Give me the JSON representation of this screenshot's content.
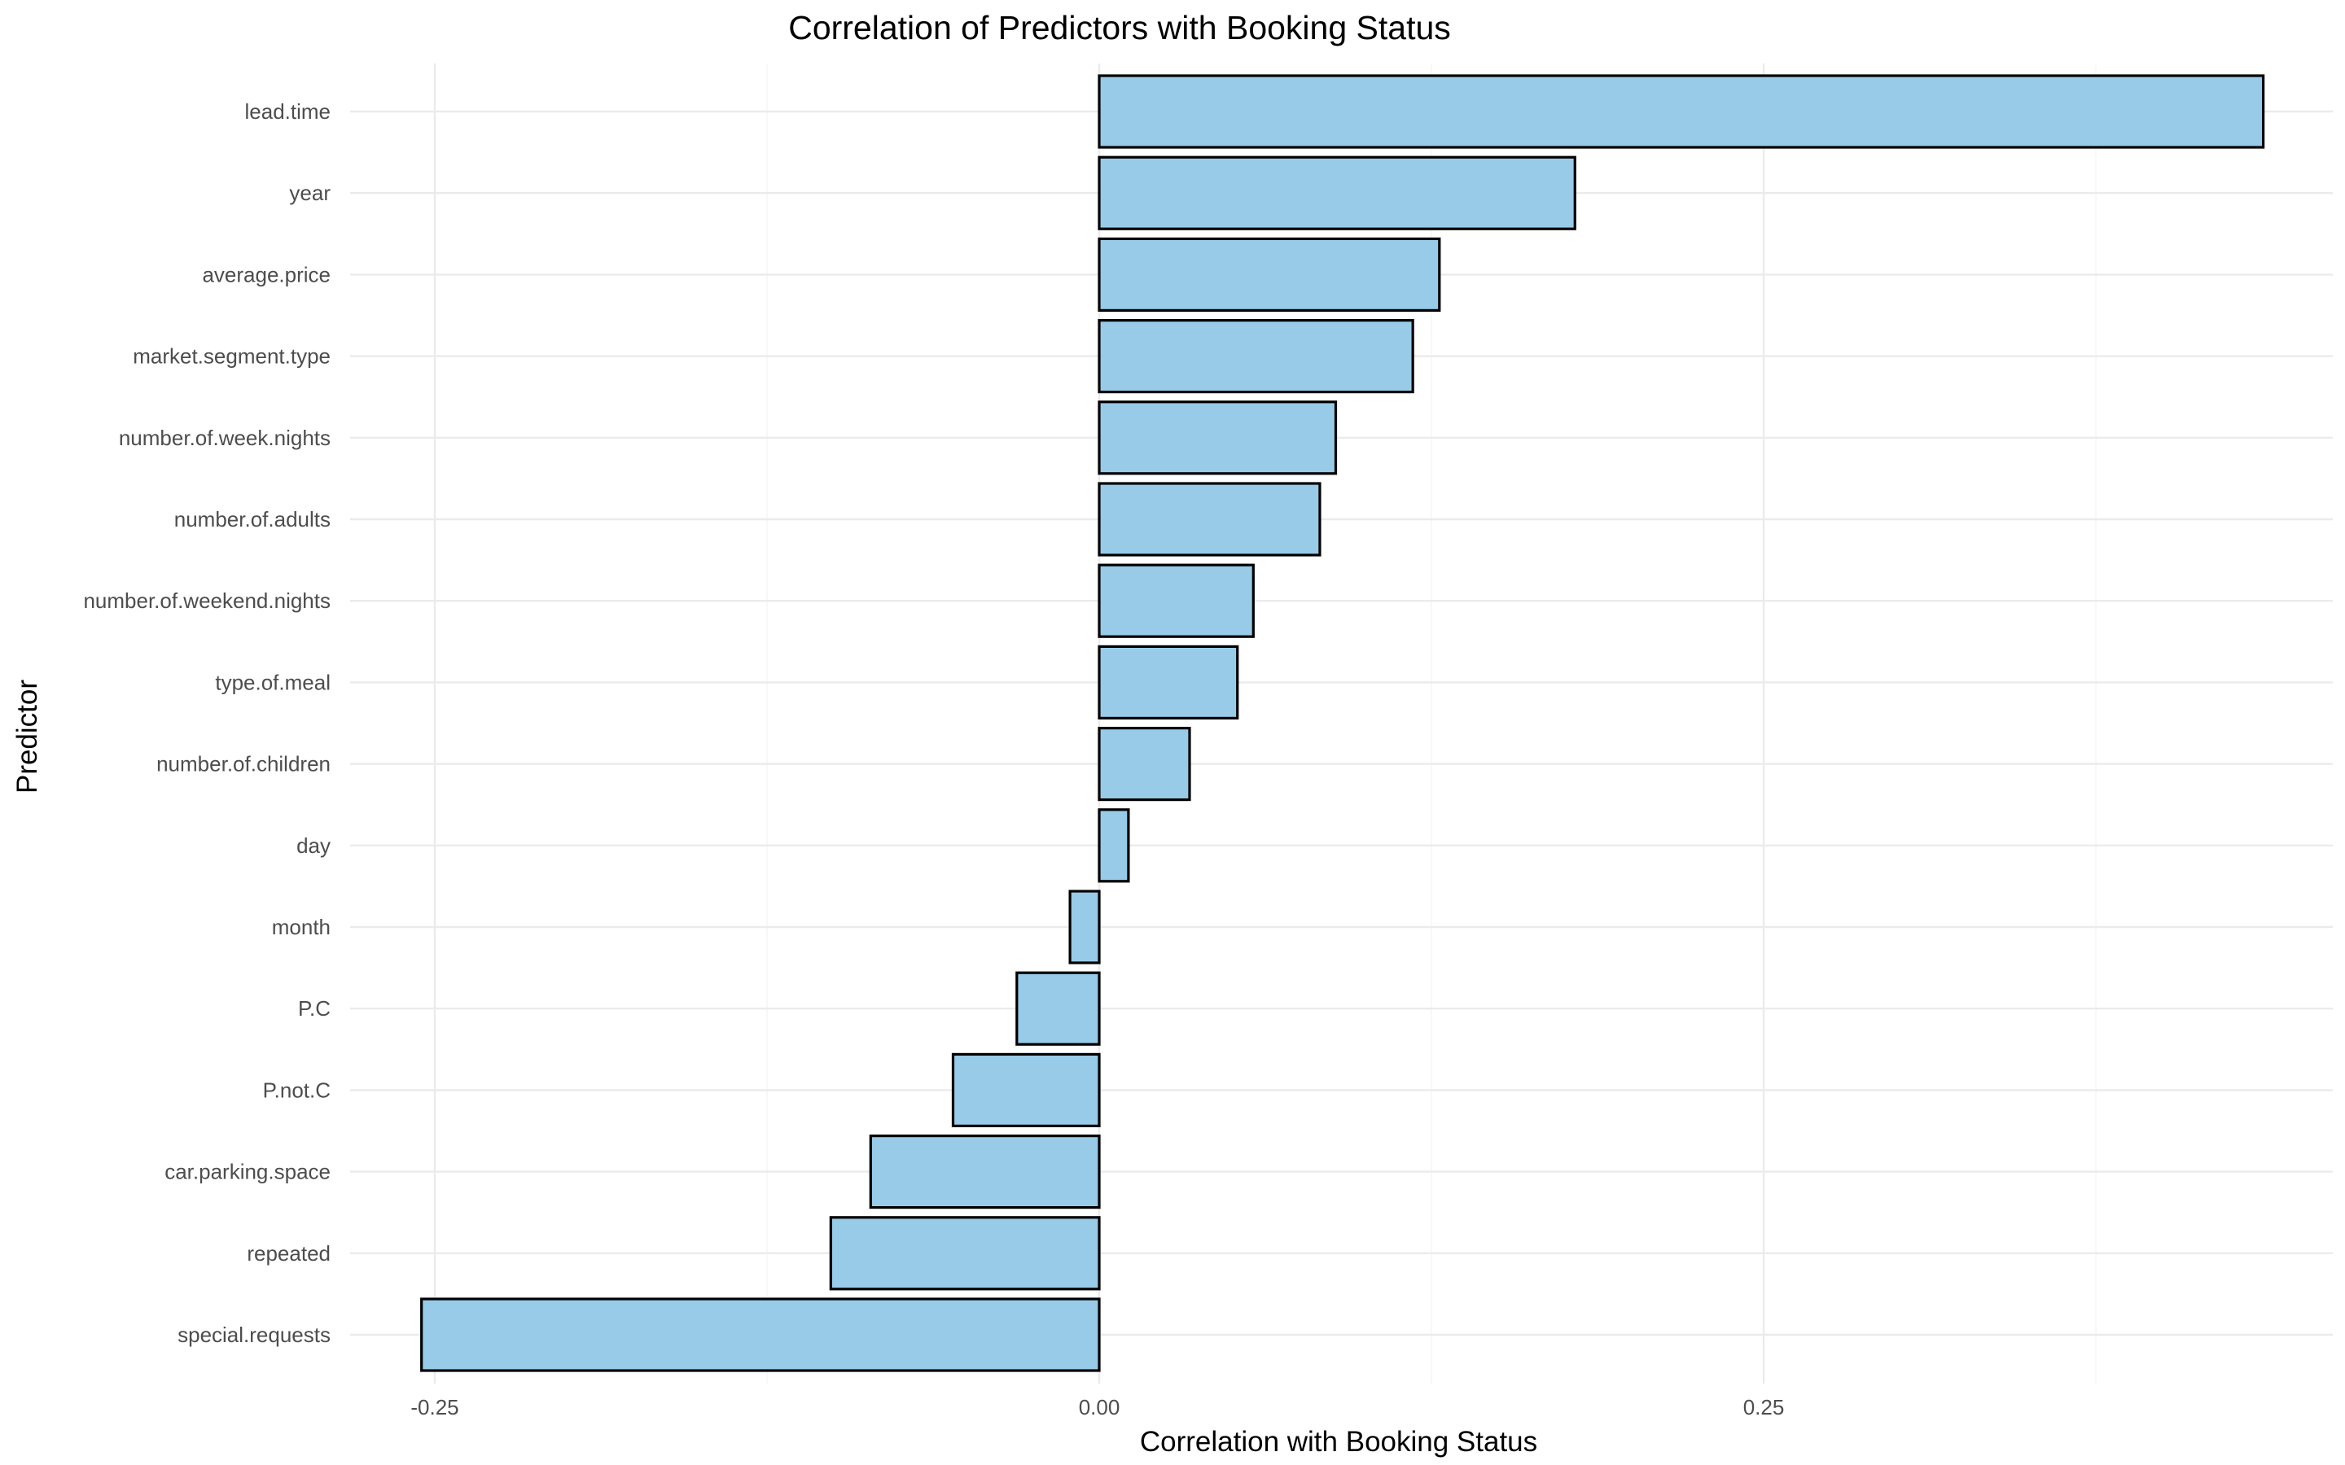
{
  "chart_data": {
    "type": "bar",
    "orientation": "horizontal",
    "title": "Correlation of Predictors with Booking Status",
    "xlabel": "Correlation with Booking Status",
    "ylabel": "Predictor",
    "categories": [
      "lead.time",
      "year",
      "average.price",
      "market.segment.type",
      "number.of.week.nights",
      "number.of.adults",
      "number.of.weekend.nights",
      "type.of.meal",
      "number.of.children",
      "day",
      "month",
      "P.C",
      "P.not.C",
      "car.parking.space",
      "repeated",
      "special.requests"
    ],
    "values": [
      0.438,
      0.179,
      0.128,
      0.118,
      0.089,
      0.083,
      0.058,
      0.052,
      0.034,
      0.011,
      -0.011,
      -0.031,
      -0.055,
      -0.086,
      -0.101,
      -0.255
    ],
    "xlim": [
      -0.255,
      0.438
    ],
    "xticks": [
      -0.25,
      0.0,
      0.25
    ],
    "xtick_labels": [
      "-0.25",
      "0.00",
      "0.25"
    ],
    "grid": true,
    "legend": "none",
    "colors": {
      "bar_fill": "#97cbe8",
      "bar_stroke": "#000000",
      "grid_major": "#ebebeb",
      "grid_minor": "#f3f3f3",
      "tick_text": "#4d4d4d",
      "axis_text": "#000000"
    }
  }
}
